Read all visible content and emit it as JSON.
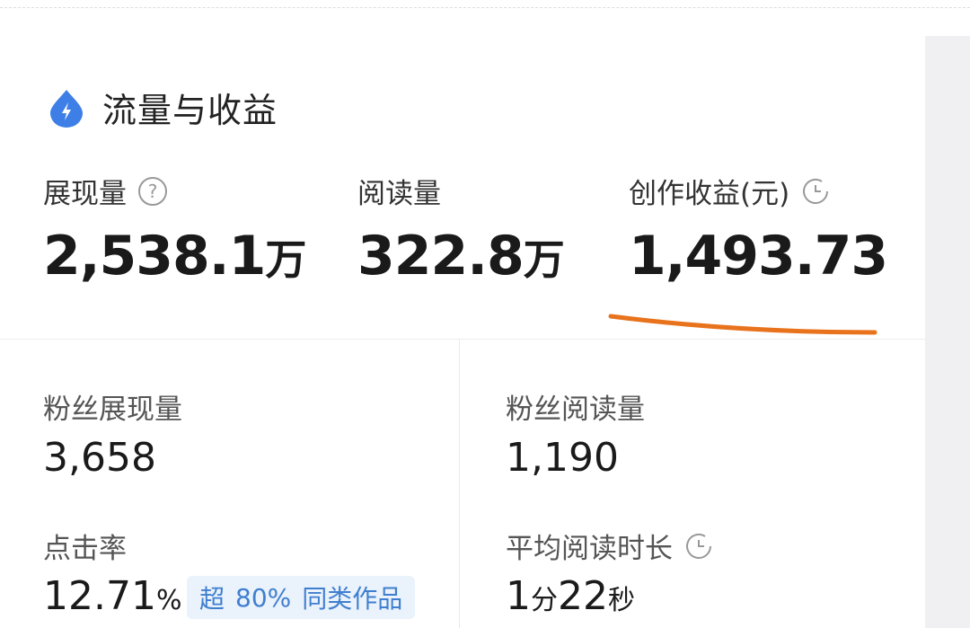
{
  "header": {
    "title": "流量与收益",
    "icon": "lightning-drop-icon",
    "accent": "#3d7fe6"
  },
  "metrics": [
    {
      "label": "展现量",
      "value": "2,538.1",
      "unit": "万",
      "icon": "help-circle-icon"
    },
    {
      "label": "阅读量",
      "value": "322.8",
      "unit": "万"
    },
    {
      "label": "创作收益(元)",
      "value": "1,493.73",
      "icon": "clock-icon"
    }
  ],
  "sub_metrics": {
    "fans_impressions": {
      "label": "粉丝展现量",
      "value": "3,658"
    },
    "fans_reads": {
      "label": "粉丝阅读量",
      "value": "1,190"
    },
    "ctr": {
      "label": "点击率",
      "value": "12.71",
      "unit": "%",
      "badge": {
        "prefix": "超",
        "percent": "80%",
        "suffix": "同类作品"
      }
    },
    "avg_read_time": {
      "label": "平均阅读时长",
      "icon": "clock-icon",
      "minutes": "1",
      "min_unit": "分",
      "seconds": "22",
      "sec_unit": "秒"
    }
  },
  "annotation": {
    "underline_color": "#e8731c"
  }
}
